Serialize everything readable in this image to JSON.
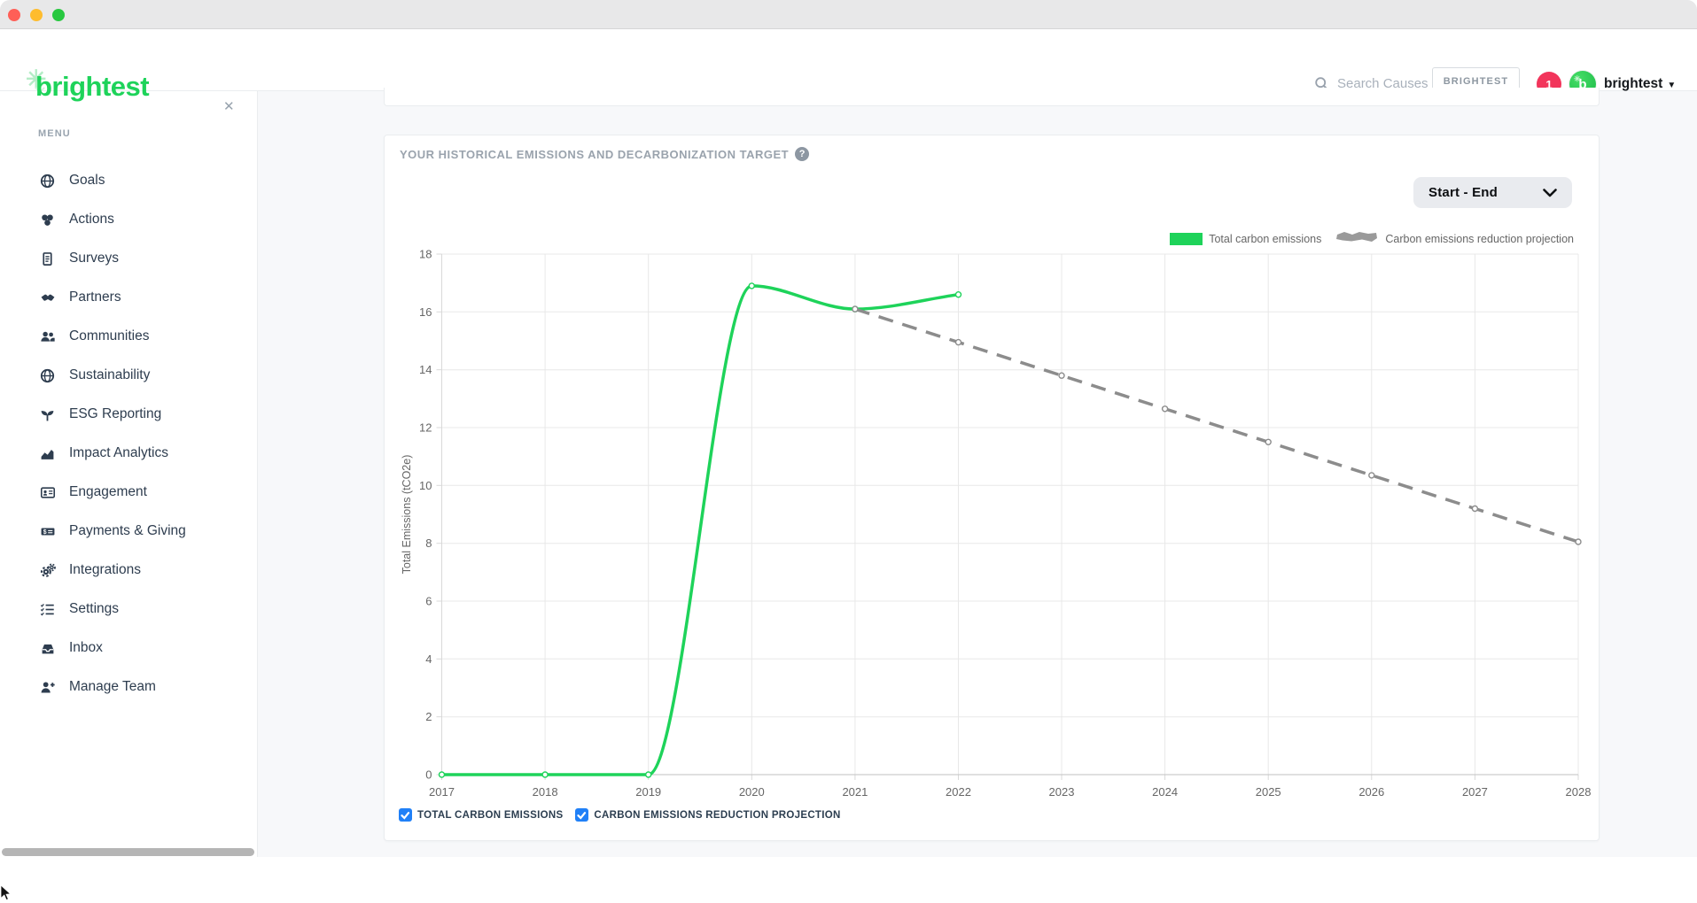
{
  "window": {
    "close_label": "close",
    "minimize_label": "minimize",
    "zoom_label": "zoom"
  },
  "header": {
    "logo_text": "brightest",
    "search_placeholder": "Search Causes",
    "org_button_label": "BRIGHTEST",
    "notification_count": "1",
    "avatar_letter": "b",
    "user_menu_label": "brightest"
  },
  "sidebar": {
    "menu_label": "MENU",
    "close_icon": "✕",
    "items": [
      {
        "label": "Goals",
        "icon": "globe-icon"
      },
      {
        "label": "Actions",
        "icon": "coins-icon"
      },
      {
        "label": "Surveys",
        "icon": "survey-icon"
      },
      {
        "label": "Partners",
        "icon": "handshake-icon"
      },
      {
        "label": "Communities",
        "icon": "users-icon"
      },
      {
        "label": "Sustainability",
        "icon": "globe-icon"
      },
      {
        "label": "ESG Reporting",
        "icon": "seedling-icon"
      },
      {
        "label": "Impact Analytics",
        "icon": "chart-area-icon"
      },
      {
        "label": "Engagement",
        "icon": "id-card-icon"
      },
      {
        "label": "Payments & Giving",
        "icon": "money-check-icon"
      },
      {
        "label": "Integrations",
        "icon": "gears-icon"
      },
      {
        "label": "Settings",
        "icon": "list-check-icon"
      },
      {
        "label": "Inbox",
        "icon": "inbox-icon"
      },
      {
        "label": "Manage Team",
        "icon": "user-plus-icon"
      }
    ]
  },
  "main": {
    "card": {
      "title": "YOUR HISTORICAL EMISSIONS AND DECARBONIZATION TARGET",
      "range_selector_label": "Start - End",
      "legend": [
        {
          "label": "Total carbon emissions",
          "color": "#1ed35a",
          "style": "solid"
        },
        {
          "label": "Carbon emissions reduction projection",
          "color": "#9a9a9a",
          "style": "dashed"
        }
      ],
      "checkboxes": [
        {
          "label": "TOTAL CARBON EMISSIONS",
          "checked": true
        },
        {
          "label": "CARBON EMISSIONS REDUCTION PROJECTION",
          "checked": true
        }
      ]
    }
  },
  "chart_data": {
    "type": "line",
    "x": [
      2017,
      2018,
      2019,
      2020,
      2021,
      2022,
      2023,
      2024,
      2025,
      2026,
      2027,
      2028
    ],
    "series": [
      {
        "name": "Total carbon emissions",
        "color": "#1ed35a",
        "style": "solid",
        "values": [
          0,
          0,
          0,
          16.9,
          16.1,
          16.6,
          null,
          null,
          null,
          null,
          null,
          null
        ]
      },
      {
        "name": "Carbon emissions reduction projection",
        "color": "#8c8c8c",
        "style": "dashed",
        "values": [
          null,
          null,
          null,
          null,
          16.1,
          14.95,
          13.8,
          12.65,
          11.5,
          10.35,
          9.2,
          8.05
        ]
      }
    ],
    "title": "",
    "xlabel": "",
    "ylabel": "Total Emissions (tCO2e)",
    "ylim": [
      0,
      18
    ],
    "ytick_step": 2,
    "grid": true,
    "legend_position": "top-right"
  },
  "colors": {
    "brand_green": "#1ed35a",
    "projection_gray": "#8c8c8c",
    "notification_red": "#f2355b",
    "checkbox_blue": "#2080f7",
    "sidebar_text": "#2e3d4f",
    "muted_text": "#9aa3ad",
    "axis_text": "#666666",
    "page_bg": "#f7f8fa"
  }
}
